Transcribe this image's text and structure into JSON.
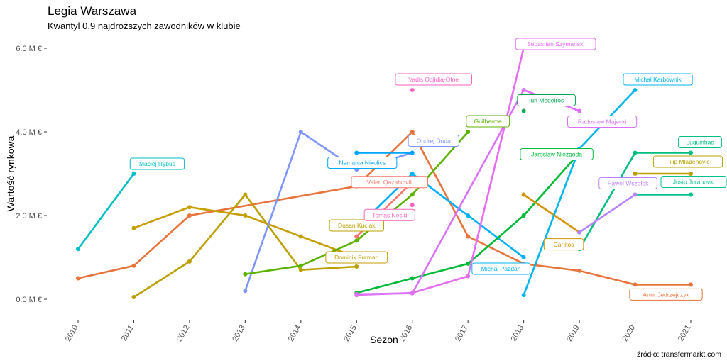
{
  "title": "Legia Warszawa",
  "subtitle": "Kwantyl 0.9 najdroższych zawodników w klubie",
  "caption": "źródło: transfermarkt.com",
  "chart_data": {
    "type": "line",
    "xlabel": "Sezon",
    "ylabel": "Wartość rynkowa",
    "x_ticks": [
      2010,
      2011,
      2012,
      2013,
      2014,
      2015,
      2016,
      2017,
      2018,
      2019,
      2020,
      2021
    ],
    "y_ticks": [
      0,
      2,
      4,
      6
    ],
    "y_tick_labels": [
      "0.0 M €",
      "2.0 M €",
      "4.0 M €",
      "6.0 M €"
    ],
    "ylim": [
      -0.6,
      6.3
    ],
    "grid": false,
    "series": [
      {
        "name": "Maciej Rybus",
        "color": "#00BFC4",
        "points": [
          [
            2010,
            1.2
          ],
          [
            2011,
            3.0
          ]
        ],
        "label_at": [
          2011,
          3.0
        ]
      },
      {
        "name": "Artur Jedrzejczyk",
        "color": "#E8743B",
        "points": [
          [
            2010,
            0.5
          ],
          [
            2011,
            0.8
          ],
          [
            2012,
            2.0
          ],
          [
            2015,
            2.7
          ],
          [
            2016,
            4.0
          ],
          [
            2017,
            1.5
          ],
          [
            2018,
            0.85
          ],
          [
            2019,
            0.68
          ],
          [
            2020,
            0.35
          ],
          [
            2021,
            0.35
          ]
        ],
        "label_at": [
          2021,
          0.35
        ]
      },
      {
        "name": "Dusan Kuciak",
        "color": "#BCA000",
        "points": [
          [
            2011,
            0.05
          ],
          [
            2012,
            0.9
          ],
          [
            2013,
            2.5
          ],
          [
            2014,
            0.7
          ],
          [
            2015,
            0.78
          ]
        ],
        "label_at": [
          2015,
          0.78
        ]
      },
      {
        "name": "Dominik Furman",
        "color": "#C59E00",
        "points": [
          [
            2011,
            1.7
          ],
          [
            2012,
            2.2
          ],
          [
            2013,
            2.0
          ],
          [
            2014,
            1.5
          ],
          [
            2015,
            1.0
          ]
        ],
        "label_at": [
          2015,
          1.0
        ]
      },
      {
        "name": "Ondrej Duda",
        "color": "#7F96FF",
        "points": [
          [
            2013,
            0.2
          ],
          [
            2014,
            4.0
          ],
          [
            2015,
            3.1
          ],
          [
            2016,
            3.5
          ]
        ],
        "label_at": [
          2016,
          3.5
        ]
      },
      {
        "name": "Nemanja Nikolics",
        "color": "#00A5FF",
        "points": [
          [
            2015,
            3.5
          ],
          [
            2016,
            3.5
          ]
        ],
        "label_at": [
          2015,
          3.5
        ]
      },
      {
        "name": "Michal Pazdan",
        "color": "#00B0F6",
        "points": [
          [
            2015,
            1.7
          ],
          [
            2016,
            3.0
          ],
          [
            2017,
            2.0
          ],
          [
            2018,
            1.0
          ]
        ],
        "label_at": [
          2018,
          1.0
        ]
      },
      {
        "name": "Guilherme",
        "color": "#5BB300",
        "points": [
          [
            2013,
            0.6
          ],
          [
            2014,
            0.8
          ],
          [
            2015,
            1.4
          ],
          [
            2016,
            2.5
          ],
          [
            2017,
            4.0
          ]
        ],
        "label_at": [
          2017,
          4.0
        ]
      },
      {
        "name": "Jaroslaw Niezgoda",
        "color": "#00BA38",
        "points": [
          [
            2015,
            0.15
          ],
          [
            2016,
            0.5
          ],
          [
            2017,
            0.85
          ],
          [
            2018,
            2.0
          ],
          [
            2019,
            3.5
          ]
        ],
        "label_at": [
          2019,
          3.5
        ]
      },
      {
        "name": "Vadis Odjidja-Ofoe",
        "color": "#FF61C3",
        "points": [
          [
            2016,
            5.0
          ]
        ],
        "label_at": [
          2016,
          5.0
        ]
      },
      {
        "name": "Tomas Necid",
        "color": "#FF62BC",
        "points": [
          [
            2016,
            2.25
          ]
        ],
        "label_at": [
          2016,
          2.25
        ]
      },
      {
        "name": "Valeri Qazaishvili",
        "color": "#F8766D",
        "points": [
          [
            2015,
            1.5
          ],
          [
            2016,
            2.8
          ]
        ],
        "label_at": [
          2016,
          2.8
        ]
      },
      {
        "name": "Sebastian Szymanski",
        "color": "#E76BF3",
        "points": [
          [
            2015,
            0.1
          ],
          [
            2016,
            0.15
          ],
          [
            2017,
            0.55
          ],
          [
            2018,
            6.0
          ]
        ],
        "label_at": [
          2018,
          6.0
        ]
      },
      {
        "name": "Radoslaw Majecki",
        "color": "#DB72FB",
        "points": [
          [
            2015,
            0.12
          ],
          [
            2016,
            0.14
          ],
          [
            2018,
            5.0
          ],
          [
            2019,
            4.5
          ]
        ],
        "label_at": [
          2019,
          4.5
        ]
      },
      {
        "name": "Iuri Medeiros",
        "color": "#00A94F",
        "points": [
          [
            2018,
            4.5
          ]
        ],
        "label_at": [
          2018,
          4.5
        ]
      },
      {
        "name": "Carlitos",
        "color": "#D39200",
        "points": [
          [
            2018,
            2.5
          ],
          [
            2019,
            1.6
          ]
        ],
        "label_at": [
          2019,
          1.6
        ]
      },
      {
        "name": "Michal Karbownik",
        "color": "#00B4EF",
        "points": [
          [
            2018,
            0.1
          ],
          [
            2019,
            3.6
          ],
          [
            2020,
            5.0
          ]
        ],
        "label_at": [
          2020,
          5.0
        ]
      },
      {
        "name": "Luquinhas",
        "color": "#00BF7D",
        "points": [
          [
            2019,
            1.2
          ],
          [
            2020,
            3.5
          ],
          [
            2021,
            3.5
          ]
        ],
        "label_at": [
          2021,
          3.5
        ]
      },
      {
        "name": "Filip Mladenovic",
        "color": "#B8A000",
        "points": [
          [
            2020,
            3.0
          ],
          [
            2021,
            3.0
          ]
        ],
        "label_at": [
          2021,
          3.0
        ]
      },
      {
        "name": "Josip Juranovic",
        "color": "#00C08B",
        "points": [
          [
            2020,
            2.5
          ],
          [
            2021,
            2.5
          ]
        ],
        "label_at": [
          2021,
          2.5
        ]
      },
      {
        "name": "Pawel Wszolek",
        "color": "#B983FF",
        "points": [
          [
            2019,
            1.6
          ],
          [
            2020,
            2.5
          ]
        ],
        "label_at": [
          2020,
          2.5
        ]
      }
    ]
  }
}
